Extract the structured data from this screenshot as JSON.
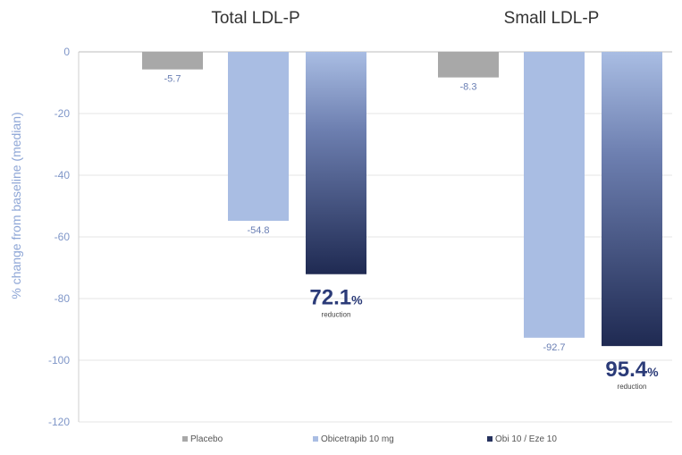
{
  "chart_data": {
    "type": "bar",
    "title": "",
    "ylabel": "% change from baseline (median)",
    "ylim": [
      -120,
      0
    ],
    "yticks": [
      0,
      -20,
      -40,
      -60,
      -80,
      -100,
      -120
    ],
    "grid": true,
    "legend_position": "bottom",
    "categories": [
      "Total LDL-P",
      "Small LDL-P"
    ],
    "series": [
      {
        "name": "Placebo",
        "color": "#a8a8a8",
        "values": [
          -5.7,
          -8.3
        ],
        "labels": [
          "-5.7",
          "-8.3"
        ]
      },
      {
        "name": "Obicetrapib 10 mg",
        "color": "#a9bde3",
        "values": [
          -54.8,
          -92.7
        ],
        "labels": [
          "-54.8",
          "-92.7"
        ]
      },
      {
        "name": "Obi 10 / Eze 10",
        "color": "#26325e",
        "values": [
          -72.1,
          -95.4
        ],
        "labels": [
          "",
          ""
        ]
      }
    ],
    "callouts": [
      {
        "category_index": 0,
        "value": "72.1",
        "unit": "%",
        "note": "reduction"
      },
      {
        "category_index": 1,
        "value": "95.4",
        "unit": "%",
        "note": "reduction"
      }
    ]
  }
}
